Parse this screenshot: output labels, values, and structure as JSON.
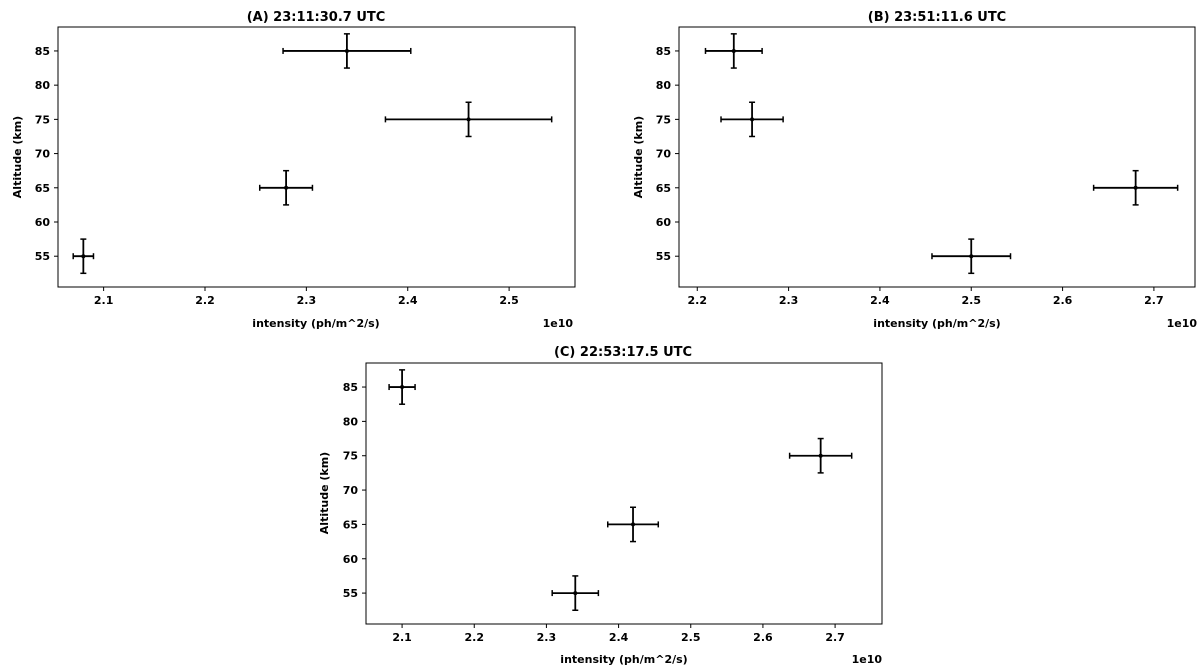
{
  "chart_data": [
    {
      "type": "scatter",
      "title": "(A)  23:11:30.7 UTC",
      "xlabel": "intensity (ph/m^2/s)",
      "ylabel": "Altitude (km)",
      "x_offset_label": "1e10",
      "xlim": [
        2.055,
        2.565
      ],
      "ylim": [
        50.5,
        88.5
      ],
      "x_ticks": [
        2.1,
        2.2,
        2.3,
        2.4,
        2.5
      ],
      "x_tick_labels": [
        "2.1",
        "2.2",
        "2.3",
        "2.4",
        "2.5"
      ],
      "y_ticks": [
        55,
        60,
        65,
        70,
        75,
        80,
        85
      ],
      "y_tick_labels": [
        "55",
        "60",
        "65",
        "70",
        "75",
        "80",
        "85"
      ],
      "grid": false,
      "points": [
        {
          "x": 2.08,
          "y": 55,
          "xerr": 0.01,
          "yerr": 2.5
        },
        {
          "x": 2.28,
          "y": 65,
          "xerr": 0.026,
          "yerr": 2.5
        },
        {
          "x": 2.46,
          "y": 75,
          "xerr": 0.082,
          "yerr": 2.5
        },
        {
          "x": 2.34,
          "y": 85,
          "xerr": 0.063,
          "yerr": 2.5
        }
      ]
    },
    {
      "type": "scatter",
      "title": "(B)  23:51:11.6 UTC",
      "xlabel": "intensity (ph/m^2/s)",
      "ylabel": "Altitude (km)",
      "x_offset_label": "1e10",
      "xlim": [
        2.18,
        2.745
      ],
      "ylim": [
        50.5,
        88.5
      ],
      "x_ticks": [
        2.2,
        2.3,
        2.4,
        2.5,
        2.6,
        2.7
      ],
      "x_tick_labels": [
        "2.2",
        "2.3",
        "2.4",
        "2.5",
        "2.6",
        "2.7"
      ],
      "y_ticks": [
        55,
        60,
        65,
        70,
        75,
        80,
        85
      ],
      "y_tick_labels": [
        "55",
        "60",
        "65",
        "70",
        "75",
        "80",
        "85"
      ],
      "grid": false,
      "points": [
        {
          "x": 2.5,
          "y": 55,
          "xerr": 0.043,
          "yerr": 2.5
        },
        {
          "x": 2.68,
          "y": 65,
          "xerr": 0.046,
          "yerr": 2.5
        },
        {
          "x": 2.26,
          "y": 75,
          "xerr": 0.034,
          "yerr": 2.5
        },
        {
          "x": 2.24,
          "y": 85,
          "xerr": 0.031,
          "yerr": 2.5
        }
      ]
    },
    {
      "type": "scatter",
      "title": "(C)  22:53:17.5 UTC",
      "xlabel": "intensity (ph/m^2/s)",
      "ylabel": "Altitude (km)",
      "x_offset_label": "1e10",
      "xlim": [
        2.05,
        2.765
      ],
      "ylim": [
        50.5,
        88.5
      ],
      "x_ticks": [
        2.1,
        2.2,
        2.3,
        2.4,
        2.5,
        2.6,
        2.7
      ],
      "x_tick_labels": [
        "2.1",
        "2.2",
        "2.3",
        "2.4",
        "2.5",
        "2.6",
        "2.7"
      ],
      "y_ticks": [
        55,
        60,
        65,
        70,
        75,
        80,
        85
      ],
      "y_tick_labels": [
        "55",
        "60",
        "65",
        "70",
        "75",
        "80",
        "85"
      ],
      "grid": false,
      "points": [
        {
          "x": 2.34,
          "y": 55,
          "xerr": 0.032,
          "yerr": 2.5
        },
        {
          "x": 2.42,
          "y": 65,
          "xerr": 0.035,
          "yerr": 2.5
        },
        {
          "x": 2.68,
          "y": 75,
          "xerr": 0.043,
          "yerr": 2.5
        },
        {
          "x": 2.1,
          "y": 85,
          "xerr": 0.018,
          "yerr": 2.5
        }
      ]
    }
  ]
}
